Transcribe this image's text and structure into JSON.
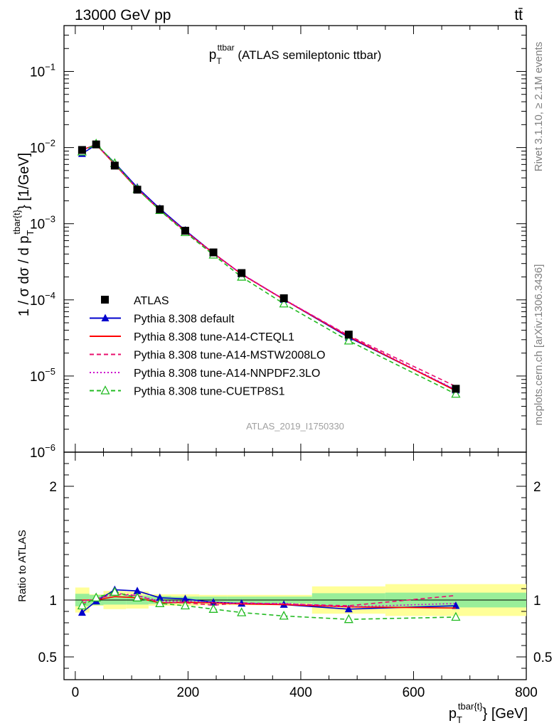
{
  "header": {
    "left": "13000 GeV pp",
    "right": "tt̄"
  },
  "side_text": {
    "rivet": "Rivet 3.1.10, ≥ 2.1M events",
    "mcplots": "mcplots.cern.ch [arXiv:1306.3436]"
  },
  "chart_data": [
    {
      "type": "line",
      "title_main": "p",
      "title_sub": "T",
      "title_sup": "ttbar",
      "title_rest": " (ATLAS semileptonic ttbar)",
      "ylabel": "1 / σ dσ / d p",
      "ylabel_sub": "T",
      "ylabel_sup": "tbar{t}",
      "ylabel_unit": "} [1/GeV]",
      "watermark": "ATLAS_2019_I1750330",
      "yscale": "log",
      "xlim": [
        -20,
        800
      ],
      "ylim": [
        1e-06,
        0.4
      ],
      "y_ticks": [
        {
          "v": 0.1,
          "b": "10",
          "e": "−1"
        },
        {
          "v": 0.01,
          "b": "10",
          "e": "−2"
        },
        {
          "v": 0.001,
          "b": "10",
          "e": "−3"
        },
        {
          "v": 0.0001,
          "b": "10",
          "e": "−4"
        },
        {
          "v": 1e-05,
          "b": "10",
          "e": "−5"
        },
        {
          "v": 1e-06,
          "b": "10",
          "e": "−6"
        }
      ],
      "legend_position": "bottom-left",
      "x": [
        12,
        37,
        70,
        110,
        150,
        195,
        245,
        295,
        370,
        485,
        675
      ],
      "data": {
        "name": "ATLAS",
        "values": [
          0.0093,
          0.011,
          0.0058,
          0.0028,
          0.00155,
          0.00081,
          0.00042,
          0.000225,
          0.000105,
          3.5e-05,
          6.8e-06
        ]
      },
      "series": [
        {
          "name": "Pythia 8.308 default",
          "color": "#0000cc",
          "style": "solid",
          "marker": "triangle-filled",
          "values": [
            0.0083,
            0.0109,
            0.0063,
            0.003,
            0.00158,
            0.00082,
            0.00041,
            0.000218,
            0.000101,
            3.22e-05,
            6.5e-06
          ]
        },
        {
          "name": "Pythia 8.308 tune-A14-CTEQL1",
          "color": "#ff0000",
          "style": "solid",
          "marker": "none",
          "values": [
            0.0093,
            0.011,
            0.006,
            0.00285,
            0.00151,
            0.0008,
            0.00041,
            0.000217,
            0.000101,
            3.3e-05,
            6.4e-06
          ]
        },
        {
          "name": "Pythia 8.308 tune-A14-MSTW2008LO",
          "color": "#e8106e",
          "style": "dashed",
          "marker": "none",
          "values": [
            0.009,
            0.0111,
            0.0061,
            0.0029,
            0.00152,
            0.00079,
            0.0004,
            0.00022,
            0.000101,
            3.4e-05,
            7.3e-06
          ]
        },
        {
          "name": "Pythia 8.308 tune-A14-NNPDF2.3LO",
          "color": "#cc00cc",
          "style": "dotted",
          "marker": "none",
          "values": [
            0.0092,
            0.0111,
            0.0061,
            0.0029,
            0.00153,
            0.0008,
            0.00041,
            0.000218,
            0.000102,
            3.35e-05,
            6.6e-06
          ]
        },
        {
          "name": "Pythia 8.308 tune-CUETP8S1",
          "color": "#22bb22",
          "style": "dashed",
          "marker": "triangle-open",
          "values": [
            0.0088,
            0.0112,
            0.0062,
            0.00285,
            0.0015,
            0.00077,
            0.00039,
            0.0002,
            8.9e-05,
            2.9e-05,
            5.8e-06
          ]
        }
      ]
    },
    {
      "type": "line",
      "ylabel": "Ratio to ATLAS",
      "xlabel": "p",
      "xlabel_sub": "T",
      "xlabel_sup": "tbar{t}",
      "xlabel_rest": "} [GeV]",
      "xlim": [
        -20,
        800
      ],
      "ylim": [
        0.3,
        2.3
      ],
      "x_ticks": [
        0,
        200,
        400,
        600,
        800
      ],
      "y_ticks": [
        0.5,
        1,
        2
      ],
      "bin_edges": [
        0,
        25,
        50,
        90,
        130,
        170,
        220,
        270,
        320,
        420,
        550,
        800
      ],
      "band_green": [
        0.055,
        0.045,
        0.04,
        0.04,
        0.035,
        0.03,
        0.03,
        0.03,
        0.03,
        0.06,
        0.065
      ],
      "band_yellow": [
        0.11,
        0.05,
        0.08,
        0.075,
        0.05,
        0.05,
        0.045,
        0.045,
        0.045,
        0.12,
        0.14
      ],
      "x": [
        12,
        37,
        70,
        110,
        150,
        195,
        245,
        295,
        370,
        485,
        675
      ],
      "series": [
        {
          "name": "Pythia 8.308 default",
          "color": "#0000cc",
          "style": "solid",
          "marker": "triangle-filled",
          "values": [
            0.89,
            0.99,
            1.09,
            1.08,
            1.02,
            1.01,
            0.98,
            0.97,
            0.96,
            0.92,
            0.95
          ]
        },
        {
          "name": "Pythia 8.308 tune-A14-CTEQL1",
          "color": "#ff0000",
          "style": "solid",
          "marker": "none",
          "values": [
            1.0,
            1.0,
            1.03,
            1.02,
            0.975,
            0.98,
            0.975,
            0.965,
            0.96,
            0.94,
            0.93
          ]
        },
        {
          "name": "Pythia 8.308 tune-A14-MSTW2008LO",
          "color": "#e8106e",
          "style": "dashed",
          "marker": "none",
          "values": [
            0.97,
            1.01,
            1.05,
            1.04,
            0.98,
            0.975,
            0.955,
            0.975,
            0.965,
            0.95,
            1.04
          ]
        },
        {
          "name": "Pythia 8.308 tune-A14-NNPDF2.3LO",
          "color": "#cc00cc",
          "style": "dotted",
          "marker": "none",
          "values": [
            0.99,
            1.01,
            1.06,
            1.04,
            0.99,
            0.99,
            0.98,
            0.97,
            0.97,
            0.94,
            0.97
          ]
        },
        {
          "name": "Pythia 8.308 tune-CUETP8S1",
          "color": "#22bb22",
          "style": "dashed",
          "marker": "triangle-open",
          "values": [
            0.95,
            1.02,
            1.07,
            1.02,
            0.97,
            0.95,
            0.92,
            0.89,
            0.86,
            0.83,
            0.85
          ]
        }
      ]
    }
  ]
}
